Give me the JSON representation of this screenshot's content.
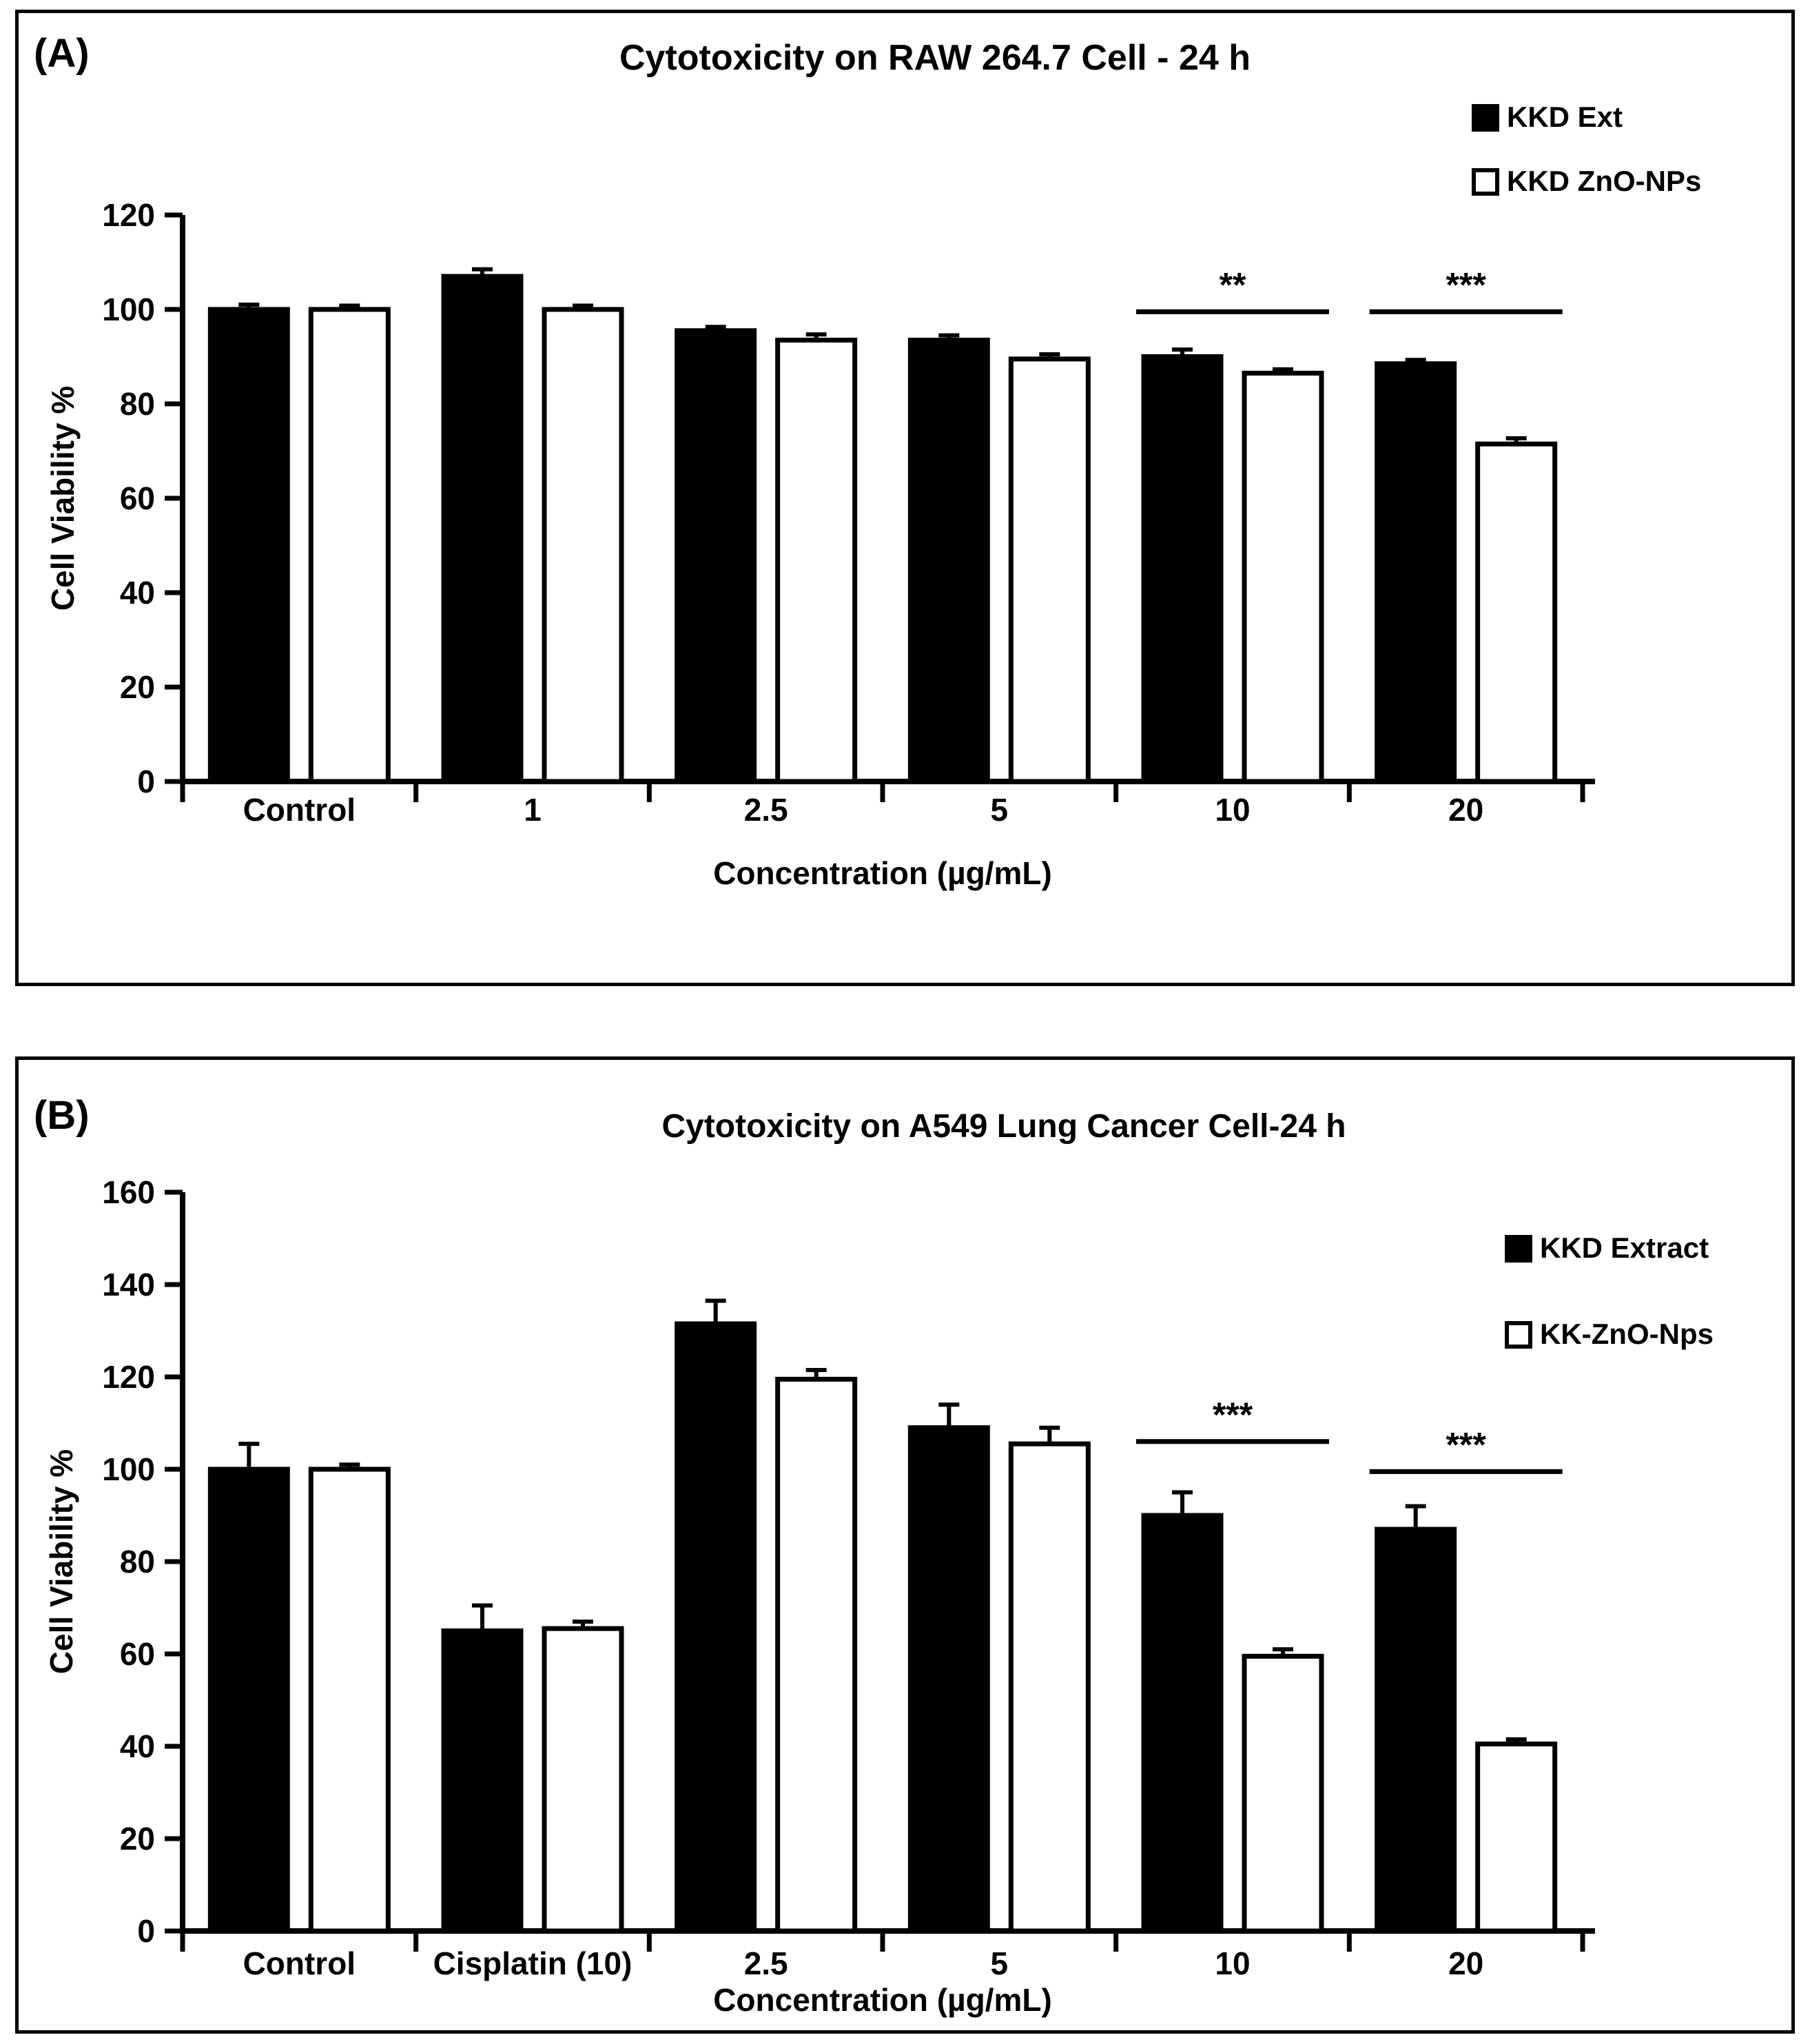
{
  "colors": {
    "black_series": "#000000",
    "white_series": "#ffffff",
    "axis": "#000000",
    "background": "#ffffff"
  },
  "chart_data": [
    {
      "type": "bar",
      "panel_label": "(A)",
      "title": "Cytotoxicity on RAW 264.7 Cell - 24 h",
      "xlabel": "Concentration (µg/mL)",
      "ylabel": "Cell Viability %",
      "ylim": [
        0,
        120
      ],
      "ytick_step": 20,
      "grid": false,
      "legend_position": "top-right",
      "categories": [
        "Control",
        "1",
        "2.5",
        "5",
        "10",
        "20"
      ],
      "series": [
        {
          "name": "KKD Ext",
          "fill": "black",
          "values": [
            100,
            107,
            95.5,
            93.5,
            90,
            88.5
          ],
          "errors": [
            1,
            1.5,
            0.8,
            1,
            1.5,
            0.8
          ]
        },
        {
          "name": "KKD ZnO-NPs",
          "fill": "white",
          "values": [
            100,
            100,
            93.5,
            89.5,
            86.5,
            71.5
          ],
          "errors": [
            0.8,
            0.8,
            1.2,
            1,
            0.8,
            1.2
          ]
        }
      ],
      "significance": [
        {
          "group_index": 4,
          "label": "**",
          "line_y": 99.5
        },
        {
          "group_index": 5,
          "label": "***",
          "line_y": 99.5
        }
      ]
    },
    {
      "type": "bar",
      "panel_label": "(B)",
      "title": "Cytotoxicity on A549 Lung Cancer Cell-24 h",
      "xlabel": "Concentration (µg/mL)",
      "ylabel": "Cell Viability %",
      "ylim": [
        0,
        160
      ],
      "ytick_step": 20,
      "grid": false,
      "legend_position": "right",
      "categories": [
        "Control",
        "Cisplatin (10)",
        "2.5",
        "5",
        "10",
        "20"
      ],
      "series": [
        {
          "name": "KKD Extract",
          "fill": "black",
          "values": [
            100,
            65,
            131.5,
            109,
            90,
            87
          ],
          "errors": [
            5.5,
            5.5,
            5,
            5,
            5,
            5
          ]
        },
        {
          "name": "KK-ZnO-Nps",
          "fill": "white",
          "values": [
            100,
            65.5,
            119.5,
            105.5,
            59.5,
            40.5
          ],
          "errors": [
            1,
            1.5,
            2,
            3.5,
            1.5,
            1
          ]
        }
      ],
      "significance": [
        {
          "group_index": 4,
          "label": "***",
          "line_y": 106
        },
        {
          "group_index": 5,
          "label": "***",
          "line_y": 99.5
        }
      ]
    }
  ]
}
